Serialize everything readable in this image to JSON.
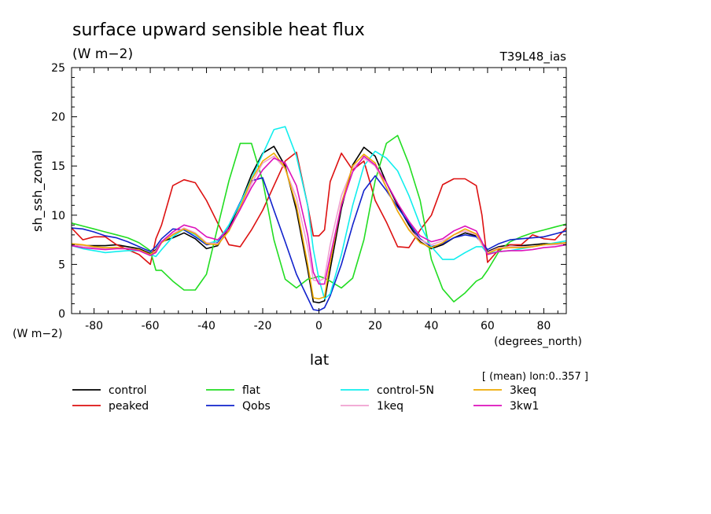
{
  "chart_data": {
    "type": "line",
    "title": "surface upward sensible heat flux",
    "units_label": "(W m−2)",
    "units_label_left": "(W m−2)",
    "experiment_label": "T39L48_ias",
    "xlabel": "lat",
    "xunits": "(degrees_north)",
    "ylabel": "sh_ssh_zonal",
    "subtitle_note": "[ (mean) lon:0..357 ]",
    "xlim": [
      -88,
      88
    ],
    "ylim": [
      0,
      25
    ],
    "xticks": [
      -80,
      -60,
      -40,
      -20,
      0,
      20,
      40,
      60,
      80
    ],
    "yticks": [
      0,
      5,
      10,
      15,
      20,
      25
    ],
    "grid": false,
    "legend_position": "bottom",
    "x": [
      -88,
      -84,
      -80,
      -76,
      -72,
      -68,
      -64,
      -60,
      -58,
      -56,
      -52,
      -48,
      -44,
      -40,
      -36,
      -32,
      -28,
      -24,
      -20,
      -16,
      -12,
      -8,
      -4,
      -2,
      0,
      2,
      4,
      8,
      12,
      16,
      20,
      24,
      28,
      32,
      36,
      40,
      44,
      48,
      52,
      56,
      58,
      60,
      64,
      68,
      72,
      76,
      80,
      84,
      88
    ],
    "series": [
      {
        "name": "control",
        "color": "#000000",
        "values": [
          7.0,
          6.9,
          6.9,
          6.9,
          7.0,
          6.8,
          6.6,
          6.1,
          6.5,
          7.3,
          7.7,
          8.2,
          7.6,
          6.6,
          6.9,
          8.7,
          11.2,
          14.1,
          16.3,
          17.0,
          15.0,
          10.5,
          4.5,
          1.2,
          1.1,
          1.3,
          4.5,
          10.7,
          15.1,
          16.9,
          16.0,
          13.3,
          11.0,
          9.0,
          7.3,
          6.6,
          7.0,
          7.7,
          8.2,
          7.9,
          7.2,
          6.3,
          6.8,
          7.0,
          6.9,
          7.0,
          7.1,
          7.1,
          7.2
        ]
      },
      {
        "name": "peaked",
        "color": "#dd1111",
        "values": [
          8.7,
          7.5,
          7.8,
          7.8,
          7.0,
          6.5,
          6.0,
          5.0,
          7.6,
          9.0,
          13.0,
          13.6,
          13.3,
          11.5,
          9.2,
          7.0,
          6.8,
          8.5,
          10.5,
          13.0,
          15.5,
          16.4,
          11.0,
          7.9,
          7.9,
          8.5,
          13.4,
          16.3,
          14.6,
          15.5,
          11.5,
          9.3,
          6.8,
          6.7,
          8.5,
          10.0,
          13.1,
          13.7,
          13.7,
          13.0,
          10.0,
          5.2,
          6.5,
          7.0,
          7.0,
          8.0,
          7.6,
          7.5,
          8.7
        ]
      },
      {
        "name": "flat",
        "color": "#22dd22",
        "values": [
          9.2,
          8.9,
          8.6,
          8.3,
          8.0,
          7.7,
          7.2,
          6.4,
          4.4,
          4.4,
          3.3,
          2.4,
          2.4,
          4.0,
          8.8,
          13.5,
          17.3,
          17.3,
          13.5,
          7.5,
          3.5,
          2.6,
          3.5,
          3.6,
          3.8,
          3.6,
          3.3,
          2.6,
          3.6,
          7.5,
          13.5,
          17.3,
          18.1,
          15.2,
          11.5,
          5.5,
          2.5,
          1.2,
          2.1,
          3.3,
          3.6,
          4.4,
          6.3,
          7.3,
          7.8,
          8.2,
          8.5,
          8.8,
          9.1
        ]
      },
      {
        "name": "Qobs",
        "color": "#1122cc",
        "values": [
          8.7,
          8.6,
          8.3,
          7.9,
          7.7,
          7.3,
          6.8,
          6.3,
          6.8,
          7.6,
          8.6,
          8.5,
          7.8,
          7.0,
          7.2,
          9.0,
          11.3,
          13.5,
          13.8,
          10.5,
          7.3,
          4.0,
          1.6,
          0.4,
          0.3,
          0.6,
          1.8,
          5.0,
          9.0,
          12.5,
          14.0,
          12.5,
          10.8,
          9.2,
          7.6,
          6.8,
          7.1,
          7.7,
          8.0,
          7.8,
          7.2,
          6.5,
          7.1,
          7.5,
          7.6,
          7.7,
          7.8,
          8.1,
          8.4
        ]
      },
      {
        "name": "control-5N",
        "color": "#11eeee",
        "values": [
          6.9,
          6.6,
          6.4,
          6.2,
          6.3,
          6.4,
          6.4,
          6.0,
          5.8,
          6.5,
          7.8,
          8.6,
          8.0,
          7.1,
          7.4,
          9.0,
          11.2,
          13.7,
          16.2,
          18.7,
          19.0,
          16.0,
          11.0,
          6.5,
          3.5,
          1.5,
          2.0,
          6.0,
          11.0,
          15.0,
          16.5,
          15.8,
          14.5,
          12.0,
          9.0,
          6.8,
          5.5,
          5.5,
          6.2,
          6.8,
          6.8,
          6.1,
          6.3,
          6.4,
          6.6,
          6.8,
          7.0,
          7.2,
          7.4
        ]
      },
      {
        "name": "1keq",
        "color": "#f0a0d0",
        "values": [
          7.0,
          6.9,
          6.7,
          6.6,
          6.7,
          6.6,
          6.4,
          6.0,
          6.4,
          7.3,
          8.1,
          8.7,
          8.2,
          7.2,
          7.1,
          8.4,
          10.6,
          13.2,
          15.3,
          16.0,
          14.7,
          11.8,
          6.8,
          3.4,
          3.3,
          3.6,
          7.0,
          12.0,
          14.8,
          15.8,
          15.0,
          12.8,
          10.4,
          8.6,
          7.5,
          7.0,
          7.4,
          8.0,
          8.4,
          8.0,
          7.0,
          6.2,
          6.7,
          6.8,
          6.8,
          6.8,
          7.0,
          7.0,
          7.1
        ]
      },
      {
        "name": "3keq",
        "color": "#eeaa00",
        "values": [
          7.1,
          7.0,
          6.8,
          6.7,
          6.7,
          6.6,
          6.5,
          6.0,
          6.3,
          7.2,
          8.0,
          8.6,
          8.1,
          7.1,
          7.0,
          8.4,
          10.8,
          13.6,
          15.5,
          16.3,
          14.8,
          11.0,
          5.0,
          1.6,
          1.5,
          1.7,
          5.2,
          11.2,
          15.0,
          16.2,
          15.3,
          12.8,
          10.4,
          8.5,
          7.2,
          6.7,
          7.2,
          8.0,
          8.6,
          8.1,
          7.2,
          6.1,
          6.6,
          6.7,
          6.7,
          6.8,
          7.0,
          7.1,
          7.2
        ]
      },
      {
        "name": "3kw1",
        "color": "#dd11bb",
        "values": [
          6.9,
          6.7,
          6.6,
          6.5,
          6.6,
          6.6,
          6.4,
          5.9,
          6.2,
          7.3,
          8.3,
          9.0,
          8.7,
          7.8,
          7.5,
          8.6,
          10.6,
          12.8,
          14.6,
          15.8,
          15.3,
          13.0,
          8.0,
          4.2,
          3.0,
          3.0,
          5.8,
          11.0,
          14.4,
          16.0,
          15.1,
          13.3,
          11.2,
          9.4,
          7.9,
          7.3,
          7.6,
          8.4,
          8.9,
          8.4,
          7.3,
          6.0,
          6.3,
          6.4,
          6.4,
          6.5,
          6.7,
          6.8,
          7.0
        ]
      }
    ]
  }
}
